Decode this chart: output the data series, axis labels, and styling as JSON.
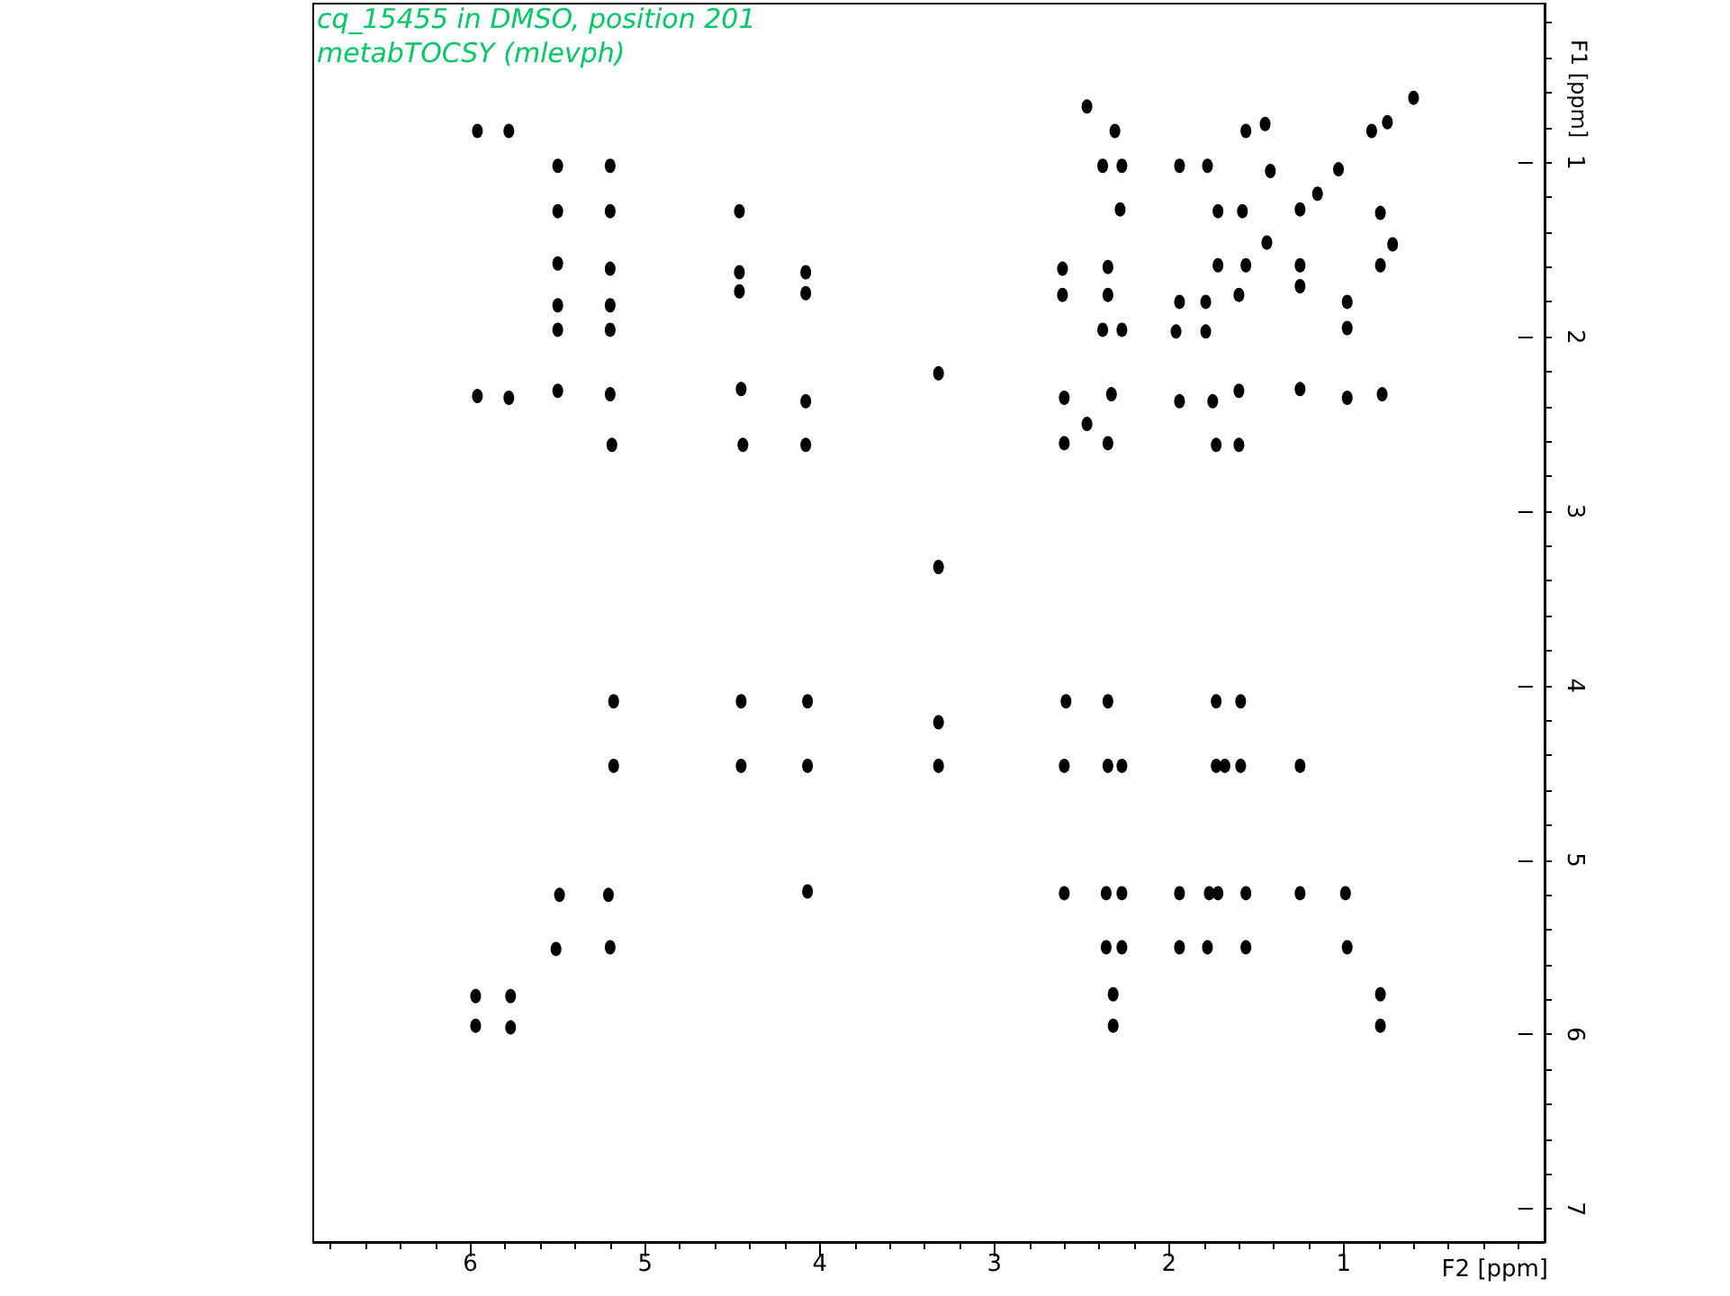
{
  "chart_data": {
    "type": "scatter",
    "title": "cq_15455 in DMSO, position 201",
    "subtitle": "metabTOCSY (mlevph)",
    "xlabel": "F2 [ppm]",
    "ylabel": "F1 [ppm]",
    "color": "#000000",
    "marker": "circle",
    "x": [
      5.96,
      5.78,
      5.5,
      5.2,
      5.5,
      5.2,
      4.46,
      5.5,
      5.2,
      4.46,
      4.08,
      4.46,
      4.08,
      5.5,
      5.2,
      5.5,
      5.2,
      5.96,
      5.78,
      5.5,
      5.2,
      4.45,
      4.08,
      5.19,
      4.44,
      4.08,
      3.32,
      3.32,
      3.32,
      3.32,
      5.18,
      4.45,
      4.07,
      5.18,
      4.45,
      4.07,
      5.49,
      5.21,
      4.07,
      5.51,
      5.2,
      5.97,
      5.77,
      5.97,
      5.77,
      2.59,
      2.35,
      1.73,
      1.59,
      2.6,
      2.35,
      2.27,
      1.73,
      1.68,
      1.59,
      1.25,
      2.6,
      2.36,
      2.27,
      1.94,
      1.77,
      1.72,
      1.56,
      1.25,
      0.99,
      2.36,
      2.27,
      1.94,
      1.78,
      1.56,
      0.98,
      2.32,
      0.79,
      2.32,
      0.79,
      2.47,
      2.31,
      1.45,
      1.56,
      0.75,
      0.6,
      0.84,
      2.38,
      2.27,
      1.94,
      1.78,
      1.42,
      1.03,
      1.15,
      2.28,
      1.72,
      1.58,
      1.25,
      0.79,
      1.44,
      0.72,
      2.61,
      2.35,
      1.72,
      1.56,
      1.25,
      0.79,
      2.61,
      2.35,
      1.94,
      1.79,
      1.6,
      1.25,
      0.98,
      2.38,
      2.27,
      1.96,
      1.79,
      0.98,
      2.6,
      2.33,
      1.94,
      1.75,
      1.6,
      1.25,
      0.98,
      0.78,
      2.47,
      2.6,
      2.35,
      1.73,
      1.6
    ],
    "values": [
      0.82,
      0.82,
      1.02,
      1.02,
      1.28,
      1.28,
      1.28,
      1.58,
      1.61,
      1.63,
      1.63,
      1.74,
      1.75,
      1.82,
      1.82,
      1.96,
      1.96,
      2.34,
      2.35,
      2.31,
      2.33,
      2.3,
      2.37,
      2.62,
      2.62,
      2.62,
      2.21,
      3.32,
      4.21,
      4.46,
      4.09,
      4.09,
      4.09,
      4.46,
      4.46,
      4.46,
      5.2,
      5.2,
      5.18,
      5.51,
      5.5,
      5.78,
      5.78,
      5.95,
      5.96,
      4.09,
      4.09,
      4.09,
      4.09,
      4.46,
      4.46,
      4.46,
      4.46,
      4.46,
      4.46,
      4.46,
      5.19,
      5.19,
      5.19,
      5.19,
      5.19,
      5.19,
      5.19,
      5.19,
      5.19,
      5.5,
      5.5,
      5.5,
      5.5,
      5.5,
      5.5,
      5.77,
      5.77,
      5.95,
      5.95,
      0.68,
      0.82,
      0.78,
      0.82,
      0.77,
      0.63,
      0.82,
      1.02,
      1.02,
      1.02,
      1.02,
      1.05,
      1.04,
      1.18,
      1.27,
      1.28,
      1.28,
      1.27,
      1.29,
      1.46,
      1.47,
      1.61,
      1.6,
      1.59,
      1.59,
      1.59,
      1.59,
      1.76,
      1.76,
      1.8,
      1.8,
      1.76,
      1.71,
      1.8,
      1.96,
      1.96,
      1.97,
      1.97,
      1.95,
      2.35,
      2.33,
      2.37,
      2.37,
      2.31,
      2.3,
      2.35,
      2.33,
      2.5,
      2.61,
      2.61,
      2.62,
      2.62
    ],
    "xlim": [
      6.9,
      -0.15
    ],
    "ylim": [
      7.19,
      0.09
    ],
    "xticks": [
      {
        "value": 6.8,
        "label": null
      },
      {
        "value": 6.6,
        "label": null
      },
      {
        "value": 6.4,
        "label": null
      },
      {
        "value": 6.2,
        "label": null
      },
      6,
      {
        "value": 5.8,
        "label": null
      },
      {
        "value": 5.6,
        "label": null
      },
      {
        "value": 5.4,
        "label": null
      },
      {
        "value": 5.2,
        "label": null
      },
      5,
      {
        "value": 4.8,
        "label": null
      },
      {
        "value": 4.6,
        "label": null
      },
      {
        "value": 4.4,
        "label": null
      },
      {
        "value": 4.2,
        "label": null
      },
      4,
      {
        "value": 3.8,
        "label": null
      },
      {
        "value": 3.6,
        "label": null
      },
      {
        "value": 3.4,
        "label": null
      },
      {
        "value": 3.2,
        "label": null
      },
      3,
      {
        "value": 2.8,
        "label": null
      },
      {
        "value": 2.6,
        "label": null
      },
      {
        "value": 2.4,
        "label": null
      },
      {
        "value": 2.2,
        "label": null
      },
      2,
      {
        "value": 1.8,
        "label": null
      },
      {
        "value": 1.6,
        "label": null
      },
      {
        "value": 1.4,
        "label": null
      },
      {
        "value": 1.2,
        "label": null
      },
      1,
      {
        "value": 0.8,
        "label": null
      },
      {
        "value": 0.6,
        "label": null
      },
      {
        "value": 0.4,
        "label": null
      },
      {
        "value": 0.2,
        "label": null
      },
      {
        "value": 0,
        "label": null
      }
    ],
    "yticks": [
      {
        "value": 0.2,
        "label": null
      },
      {
        "value": 0.4,
        "label": null
      },
      {
        "value": 0.6,
        "label": null
      },
      {
        "value": 0.8,
        "label": null
      },
      1,
      {
        "value": 1.2,
        "label": null
      },
      {
        "value": 1.4,
        "label": null
      },
      {
        "value": 1.6,
        "label": null
      },
      {
        "value": 1.8,
        "label": null
      },
      2,
      {
        "value": 2.2,
        "label": null
      },
      {
        "value": 2.4,
        "label": null
      },
      {
        "value": 2.6,
        "label": null
      },
      {
        "value": 2.8,
        "label": null
      },
      3,
      {
        "value": 3.2,
        "label": null
      },
      {
        "value": 3.4,
        "label": null
      },
      {
        "value": 3.6,
        "label": null
      },
      {
        "value": 3.8,
        "label": null
      },
      4,
      {
        "value": 4.2,
        "label": null
      },
      {
        "value": 4.4,
        "label": null
      },
      {
        "value": 4.6,
        "label": null
      },
      {
        "value": 4.8,
        "label": null
      },
      5,
      {
        "value": 5.2,
        "label": null
      },
      {
        "value": 5.4,
        "label": null
      },
      {
        "value": 5.6,
        "label": null
      },
      {
        "value": 5.8,
        "label": null
      },
      6,
      {
        "value": 6.2,
        "label": null
      },
      {
        "value": 6.4,
        "label": null
      },
      {
        "value": 6.6,
        "label": null
      },
      {
        "value": 6.8,
        "label": null
      },
      7
    ]
  }
}
